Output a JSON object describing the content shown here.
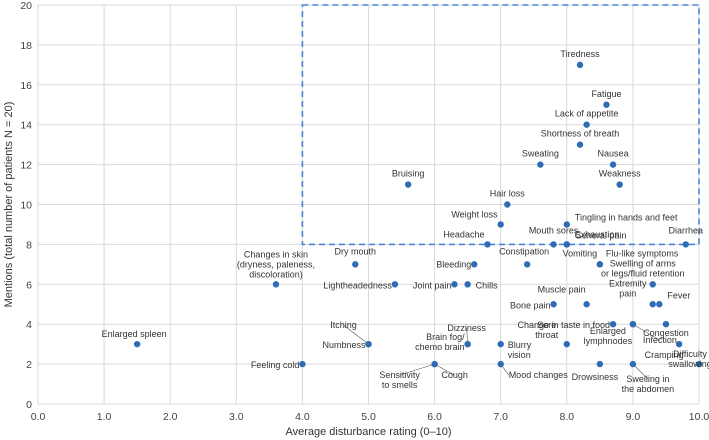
{
  "chart_data": {
    "type": "scatter",
    "title": "",
    "xlabel": "Average disturbance rating (0–10)",
    "ylabel": "Mentions (total number of patients N = 20)",
    "xlim": [
      0,
      10
    ],
    "ylim": [
      0,
      20
    ],
    "xticks": [
      0,
      1,
      2,
      3,
      4,
      5,
      6,
      7,
      8,
      9,
      10
    ],
    "yticks": [
      0,
      2,
      4,
      6,
      8,
      10,
      12,
      14,
      16,
      18,
      20
    ],
    "grid": true,
    "point_color": "#2e6db4",
    "highlight_box": {
      "x": [
        4,
        10
      ],
      "y": [
        8,
        20
      ],
      "color": "#4a86d8",
      "style": "dashed"
    },
    "points": [
      {
        "label": "Tiredness",
        "x": 8.2,
        "y": 17
      },
      {
        "label": "Fatigue",
        "x": 8.6,
        "y": 15
      },
      {
        "label": "Lack of appetite",
        "x": 8.3,
        "y": 14
      },
      {
        "label": "Shortness of breath",
        "x": 8.2,
        "y": 13
      },
      {
        "label": "Nausea",
        "x": 8.7,
        "y": 12
      },
      {
        "label": "Sweating",
        "x": 7.6,
        "y": 12
      },
      {
        "label": "Weakness",
        "x": 8.8,
        "y": 11
      },
      {
        "label": "Bruising",
        "x": 5.6,
        "y": 11
      },
      {
        "label": "Hair loss",
        "x": 7.1,
        "y": 10
      },
      {
        "label": "Tingling in hands and feet",
        "x": 8.0,
        "y": 9
      },
      {
        "label": "Weight loss",
        "x": 7.0,
        "y": 9
      },
      {
        "label": "General pain",
        "x": 8.0,
        "y": 8
      },
      {
        "label": "Mouth sores",
        "x": 7.8,
        "y": 8
      },
      {
        "label": "Headache",
        "x": 6.8,
        "y": 8
      },
      {
        "label": "Exhaustion",
        "x": 8.0,
        "y": 8
      },
      {
        "label": "Diarrhea",
        "x": 9.8,
        "y": 8
      },
      {
        "label": "Constipation",
        "x": 7.4,
        "y": 7
      },
      {
        "label": "Dry mouth",
        "x": 4.8,
        "y": 7
      },
      {
        "label": "Vomiting",
        "x": 8.5,
        "y": 7
      },
      {
        "label": "Flu-like symptoms",
        "x": 8.5,
        "y": 7
      },
      {
        "label": "Bleeding",
        "x": 6.6,
        "y": 7
      },
      {
        "label": "Changes in skin (dryness, paleness, discoloration)",
        "lines": [
          "Changes in skin",
          "(dryness, paleness,",
          "discoloration)"
        ],
        "x": 3.6,
        "y": 6
      },
      {
        "label": "Lightheadedness",
        "x": 5.4,
        "y": 6
      },
      {
        "label": "Joint pain",
        "x": 6.3,
        "y": 6
      },
      {
        "label": "Chills",
        "x": 6.5,
        "y": 6
      },
      {
        "label": "Swelling of arms or legs/fluid retention",
        "lines": [
          "Swelling of arms",
          "or legs/fluid retention"
        ],
        "x": 9.3,
        "y": 6
      },
      {
        "label": "Fever",
        "x": 9.4,
        "y": 5
      },
      {
        "label": "Muscle pain",
        "x": 8.3,
        "y": 5
      },
      {
        "label": "Bone pain",
        "x": 7.8,
        "y": 5
      },
      {
        "label": "Extremity pain",
        "lines": [
          "Extremity",
          "pain"
        ],
        "x": 9.3,
        "y": 5
      },
      {
        "label": "Congestion",
        "x": 9.5,
        "y": 4
      },
      {
        "label": "Change in taste in food",
        "x": 8.7,
        "y": 4
      },
      {
        "label": "Enlarged lymphnodes",
        "lines": [
          "Enlarged",
          "lymphnodes"
        ],
        "x": 9.0,
        "y": 4
      },
      {
        "label": "Enlarged spleen",
        "x": 1.5,
        "y": 3
      },
      {
        "label": "Itching",
        "x": 5.0,
        "y": 3
      },
      {
        "label": "Numbness",
        "x": 5.0,
        "y": 3
      },
      {
        "label": "Dizziness",
        "x": 6.5,
        "y": 3
      },
      {
        "label": "Brain fog/ chemo brain",
        "lines": [
          "Brain fog/",
          "chemo brain"
        ],
        "x": 6.5,
        "y": 3
      },
      {
        "label": "Blurry vision",
        "lines": [
          "Blurry",
          "vision"
        ],
        "x": 7.0,
        "y": 3
      },
      {
        "label": "Sore throat",
        "lines": [
          "Sore",
          "throat"
        ],
        "x": 8.0,
        "y": 3
      },
      {
        "label": "Infection",
        "x": 9.0,
        "y": 4
      },
      {
        "label": "Cramping",
        "x": 9.7,
        "y": 3
      },
      {
        "label": "Feeling cold",
        "x": 4.0,
        "y": 2
      },
      {
        "label": "Sensitivity to smells",
        "lines": [
          "Sensitivity",
          "to smells"
        ],
        "x": 6.0,
        "y": 2
      },
      {
        "label": "Cough",
        "x": 6.0,
        "y": 2
      },
      {
        "label": "Mood changes",
        "x": 7.0,
        "y": 2
      },
      {
        "label": "Drowsiness",
        "x": 8.5,
        "y": 2
      },
      {
        "label": "Swelling in the abdomen",
        "lines": [
          "Swelling in",
          "the abdomen"
        ],
        "x": 9.0,
        "y": 2
      },
      {
        "label": "Difficulty swallowing",
        "lines": [
          "Difficulty",
          "swallowing"
        ],
        "x": 10.0,
        "y": 2
      }
    ]
  }
}
